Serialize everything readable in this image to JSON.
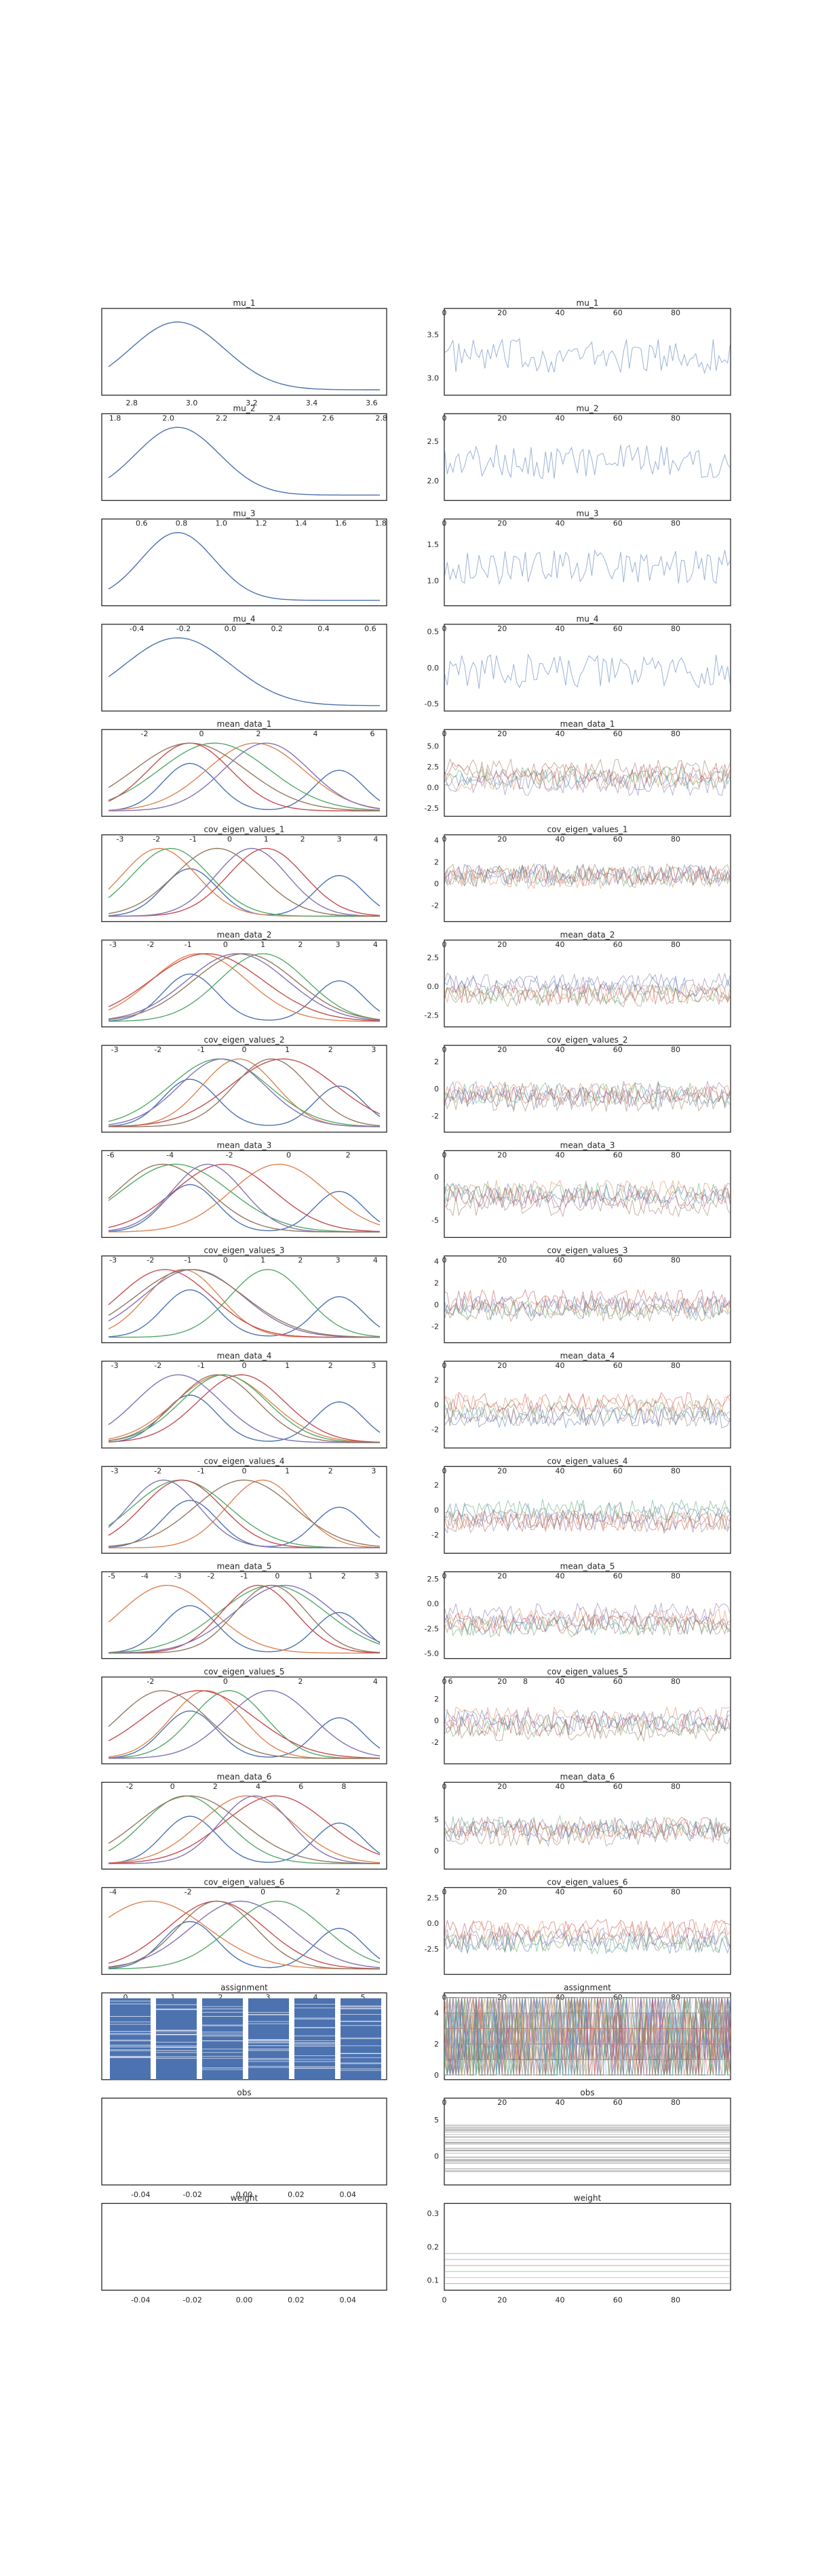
{
  "colors": {
    "blue": "#4c72b0",
    "orange": "#dd8452",
    "green": "#55a868",
    "red": "#c44e52",
    "purple": "#8172b3",
    "brown": "#937860",
    "pink": "#da8bc3",
    "gray": "#8c8c8c",
    "olive": "#ccb974",
    "cyan": "#64b5cd"
  },
  "chart_data": [
    {
      "name": "mu_1",
      "type": "traceplot",
      "title": "mu_1",
      "kde": {
        "xlim": [
          2.7,
          3.65
        ],
        "xticks": [
          "2.8",
          "3.0",
          "3.2",
          "3.4",
          "3.6"
        ],
        "n_series": 1
      },
      "trace": {
        "xlim": [
          0,
          99
        ],
        "xticks": [
          "0",
          "20",
          "40",
          "60",
          "80"
        ],
        "ylim": [
          2.8,
          3.8
        ],
        "yticks": [
          "3.0",
          "3.5"
        ],
        "n_series": 1
      }
    },
    {
      "name": "mu_2",
      "type": "traceplot",
      "title": "mu_2",
      "kde": {
        "xlim": [
          1.75,
          2.82
        ],
        "xticks": [
          "1.8",
          "2.0",
          "2.2",
          "2.4",
          "2.6",
          "2.8"
        ],
        "n_series": 1
      },
      "trace": {
        "xlim": [
          0,
          99
        ],
        "xticks": [
          "0",
          "20",
          "40",
          "60",
          "80"
        ],
        "ylim": [
          1.75,
          2.85
        ],
        "yticks": [
          "2.0",
          "2.5"
        ],
        "n_series": 1
      }
    },
    {
      "name": "mu_3",
      "type": "traceplot",
      "title": "mu_3",
      "kde": {
        "xlim": [
          0.4,
          1.83
        ],
        "xticks": [
          "0.6",
          "0.8",
          "1.0",
          "1.2",
          "1.4",
          "1.6",
          "1.8"
        ],
        "n_series": 1
      },
      "trace": {
        "xlim": [
          0,
          99
        ],
        "xticks": [
          "0",
          "20",
          "40",
          "60",
          "80"
        ],
        "ylim": [
          0.65,
          1.85
        ],
        "yticks": [
          "1.0",
          "1.5"
        ],
        "n_series": 1
      }
    },
    {
      "name": "mu_4",
      "type": "traceplot",
      "title": "mu_4",
      "kde": {
        "xlim": [
          -0.55,
          0.67
        ],
        "xticks": [
          "-0.4",
          "-0.2",
          "0.0",
          "0.2",
          "0.4",
          "0.6"
        ],
        "n_series": 1
      },
      "trace": {
        "xlim": [
          0,
          99
        ],
        "xticks": [
          "0",
          "20",
          "40",
          "60",
          "80"
        ],
        "ylim": [
          -0.6,
          0.6
        ],
        "yticks": [
          "-0.5",
          "0.0",
          "0.5"
        ],
        "n_series": 1
      }
    },
    {
      "name": "mean_data_1",
      "type": "traceplot",
      "title": "mean_data_1",
      "kde": {
        "xlim": [
          -3.5,
          6.5
        ],
        "xticks": [
          "-2",
          "0",
          "2",
          "4",
          "6"
        ],
        "n_series": 6
      },
      "trace": {
        "xlim": [
          0,
          99
        ],
        "xticks": [
          "0",
          "20",
          "40",
          "60",
          "80"
        ],
        "ylim": [
          -3.5,
          7
        ],
        "yticks": [
          "-2.5",
          "0.0",
          "2.5",
          "5.0"
        ],
        "n_series": 6
      }
    },
    {
      "name": "cov_eigen_values_1",
      "type": "traceplot",
      "title": "cov_eigen_values_1",
      "kde": {
        "xlim": [
          -3.5,
          4.3
        ],
        "xticks": [
          "-3",
          "-2",
          "-1",
          "0",
          "1",
          "2",
          "3",
          "4"
        ],
        "n_series": 6
      },
      "trace": {
        "xlim": [
          0,
          99
        ],
        "xticks": [
          "0",
          "20",
          "40",
          "60",
          "80"
        ],
        "ylim": [
          -3.5,
          4.5
        ],
        "yticks": [
          "-2",
          "0",
          "2",
          "4"
        ],
        "n_series": 6
      }
    },
    {
      "name": "mean_data_2",
      "type": "traceplot",
      "title": "mean_data_2",
      "kde": {
        "xlim": [
          -3.3,
          4.3
        ],
        "xticks": [
          "-3",
          "-2",
          "-1",
          "0",
          "1",
          "2",
          "3",
          "4"
        ],
        "n_series": 6
      },
      "trace": {
        "xlim": [
          0,
          99
        ],
        "xticks": [
          "0",
          "20",
          "40",
          "60",
          "80"
        ],
        "ylim": [
          -3.5,
          4
        ],
        "yticks": [
          "-2.5",
          "0.0",
          "2.5"
        ],
        "n_series": 6
      }
    },
    {
      "name": "cov_eigen_values_2",
      "type": "traceplot",
      "title": "cov_eigen_values_2",
      "kde": {
        "xlim": [
          -3.3,
          3.3
        ],
        "xticks": [
          "-3",
          "-2",
          "-1",
          "0",
          "1",
          "2",
          "3"
        ],
        "n_series": 6
      },
      "trace": {
        "xlim": [
          0,
          99
        ],
        "xticks": [
          "0",
          "20",
          "40",
          "60",
          "80"
        ],
        "ylim": [
          -3.2,
          3.2
        ],
        "yticks": [
          "-2",
          "0",
          "2"
        ],
        "n_series": 6
      }
    },
    {
      "name": "mean_data_3",
      "type": "traceplot",
      "title": "mean_data_3",
      "kde": {
        "xlim": [
          -6.3,
          3.3
        ],
        "xticks": [
          "-6",
          "-4",
          "-2",
          "0",
          "2"
        ],
        "n_series": 6
      },
      "trace": {
        "xlim": [
          0,
          99
        ],
        "xticks": [
          "0",
          "20",
          "40",
          "60",
          "80"
        ],
        "ylim": [
          -7,
          3
        ],
        "yticks": [
          "-5",
          "0"
        ],
        "n_series": 6
      }
    },
    {
      "name": "cov_eigen_values_3",
      "type": "traceplot",
      "title": "cov_eigen_values_3",
      "kde": {
        "xlim": [
          -3.3,
          4.3
        ],
        "xticks": [
          "-3",
          "-2",
          "-1",
          "0",
          "1",
          "2",
          "3",
          "4"
        ],
        "n_series": 6
      },
      "trace": {
        "xlim": [
          0,
          99
        ],
        "xticks": [
          "0",
          "20",
          "40",
          "60",
          "80"
        ],
        "ylim": [
          -3.5,
          4.5
        ],
        "yticks": [
          "-2",
          "0",
          "2",
          "4"
        ],
        "n_series": 6
      }
    },
    {
      "name": "mean_data_4",
      "type": "traceplot",
      "title": "mean_data_4",
      "kde": {
        "xlim": [
          -3.3,
          3.3
        ],
        "xticks": [
          "-3",
          "-2",
          "-1",
          "0",
          "1",
          "2",
          "3"
        ],
        "n_series": 6
      },
      "trace": {
        "xlim": [
          0,
          99
        ],
        "xticks": [
          "0",
          "20",
          "40",
          "60",
          "80"
        ],
        "ylim": [
          -3.5,
          3.5
        ],
        "yticks": [
          "-2",
          "0",
          "2"
        ],
        "n_series": 6
      }
    },
    {
      "name": "cov_eigen_values_4",
      "type": "traceplot",
      "title": "cov_eigen_values_4",
      "kde": {
        "xlim": [
          -3.3,
          3.3
        ],
        "xticks": [
          "-3",
          "-2",
          "-1",
          "0",
          "1",
          "2",
          "3"
        ],
        "n_series": 6
      },
      "trace": {
        "xlim": [
          0,
          99
        ],
        "xticks": [
          "0",
          "20",
          "40",
          "60",
          "80"
        ],
        "ylim": [
          -3.5,
          3.5
        ],
        "yticks": [
          "-2",
          "0",
          "2"
        ],
        "n_series": 6
      }
    },
    {
      "name": "mean_data_5",
      "type": "traceplot",
      "title": "mean_data_5",
      "kde": {
        "xlim": [
          -5.3,
          3.3
        ],
        "xticks": [
          "-5",
          "-4",
          "-3",
          "-2",
          "-1",
          "0",
          "1",
          "2",
          "3"
        ],
        "n_series": 6
      },
      "trace": {
        "xlim": [
          0,
          99
        ],
        "xticks": [
          "0",
          "20",
          "40",
          "60",
          "80"
        ],
        "ylim": [
          -5.5,
          3.2
        ],
        "yticks": [
          "-5.0",
          "-2.5",
          "0.0",
          "2.5"
        ],
        "n_series": 6
      }
    },
    {
      "name": "cov_eigen_values_5",
      "type": "traceplot",
      "title": "cov_eigen_values_5",
      "kde": {
        "xlim": [
          -3.3,
          4.3
        ],
        "xticks": [
          "-2",
          "0",
          "2",
          "4",
          "6",
          "8"
        ],
        "n_series": 6
      },
      "trace": {
        "xlim": [
          0,
          99
        ],
        "xticks": [
          "0",
          "20",
          "40",
          "60",
          "80"
        ],
        "ylim": [
          -4,
          4
        ],
        "yticks": [
          "-2",
          "0",
          "2"
        ],
        "n_series": 6
      }
    },
    {
      "name": "mean_data_6",
      "type": "traceplot",
      "title": "mean_data_6",
      "kde": {
        "xlim": [
          -3.3,
          10
        ],
        "xticks": [
          "-2",
          "0",
          "2",
          "4",
          "6",
          "8"
        ],
        "n_series": 6
      },
      "trace": {
        "xlim": [
          0,
          99
        ],
        "xticks": [
          "0",
          "20",
          "40",
          "60",
          "80"
        ],
        "ylim": [
          -3,
          11
        ],
        "yticks": [
          "0",
          "5"
        ],
        "n_series": 6
      }
    },
    {
      "name": "cov_eigen_values_6",
      "type": "traceplot",
      "title": "cov_eigen_values_6",
      "kde": {
        "xlim": [
          -4.3,
          3.3
        ],
        "xticks": [
          "-4",
          "-2",
          "0",
          "2"
        ],
        "n_series": 6
      },
      "trace": {
        "xlim": [
          0,
          99
        ],
        "xticks": [
          "0",
          "20",
          "40",
          "60",
          "80"
        ],
        "ylim": [
          -5,
          3.5
        ],
        "yticks": [
          "-2.5",
          "0.0",
          "2.5"
        ],
        "n_series": 6
      }
    },
    {
      "name": "assignment",
      "type": "traceplot",
      "title": "assignment",
      "kde": {
        "xlim": [
          -0.5,
          5.5
        ],
        "xticks": [
          "0",
          "1",
          "2",
          "3",
          "4",
          "5"
        ],
        "n_series": 6
      },
      "trace": {
        "xlim": [
          0,
          99
        ],
        "xticks": [
          "0",
          "20",
          "40",
          "60",
          "80"
        ],
        "ylim": [
          -0.3,
          5.3
        ],
        "yticks": [
          "0",
          "2",
          "4"
        ],
        "n_series": 50
      }
    },
    {
      "name": "obs",
      "type": "traceplot",
      "title": "obs",
      "kde": {
        "xlim": [
          -0.055,
          0.055
        ],
        "xticks": [
          "-0.04",
          "-0.02",
          "0.00",
          "0.02",
          "0.04"
        ],
        "n_series": 0
      },
      "trace": {
        "xlim": [
          0,
          99
        ],
        "xticks": [
          "0",
          "20",
          "40",
          "60",
          "80"
        ],
        "ylim": [
          -4,
          8
        ],
        "yticks": [
          "0",
          "5"
        ],
        "n_series": 40
      }
    },
    {
      "name": "weight",
      "type": "traceplot",
      "title": "weight",
      "kde": {
        "xlim": [
          -0.055,
          0.055
        ],
        "xticks": [
          "-0.04",
          "-0.02",
          "0.00",
          "0.02",
          "0.04"
        ],
        "n_series": 0
      },
      "trace": {
        "xlim": [
          0,
          99
        ],
        "xticks": [
          "0",
          "20",
          "40",
          "60",
          "80"
        ],
        "ylim": [
          0.07,
          0.33
        ],
        "yticks": [
          "0.1",
          "0.2",
          "0.3"
        ],
        "n_series": 6
      }
    }
  ]
}
